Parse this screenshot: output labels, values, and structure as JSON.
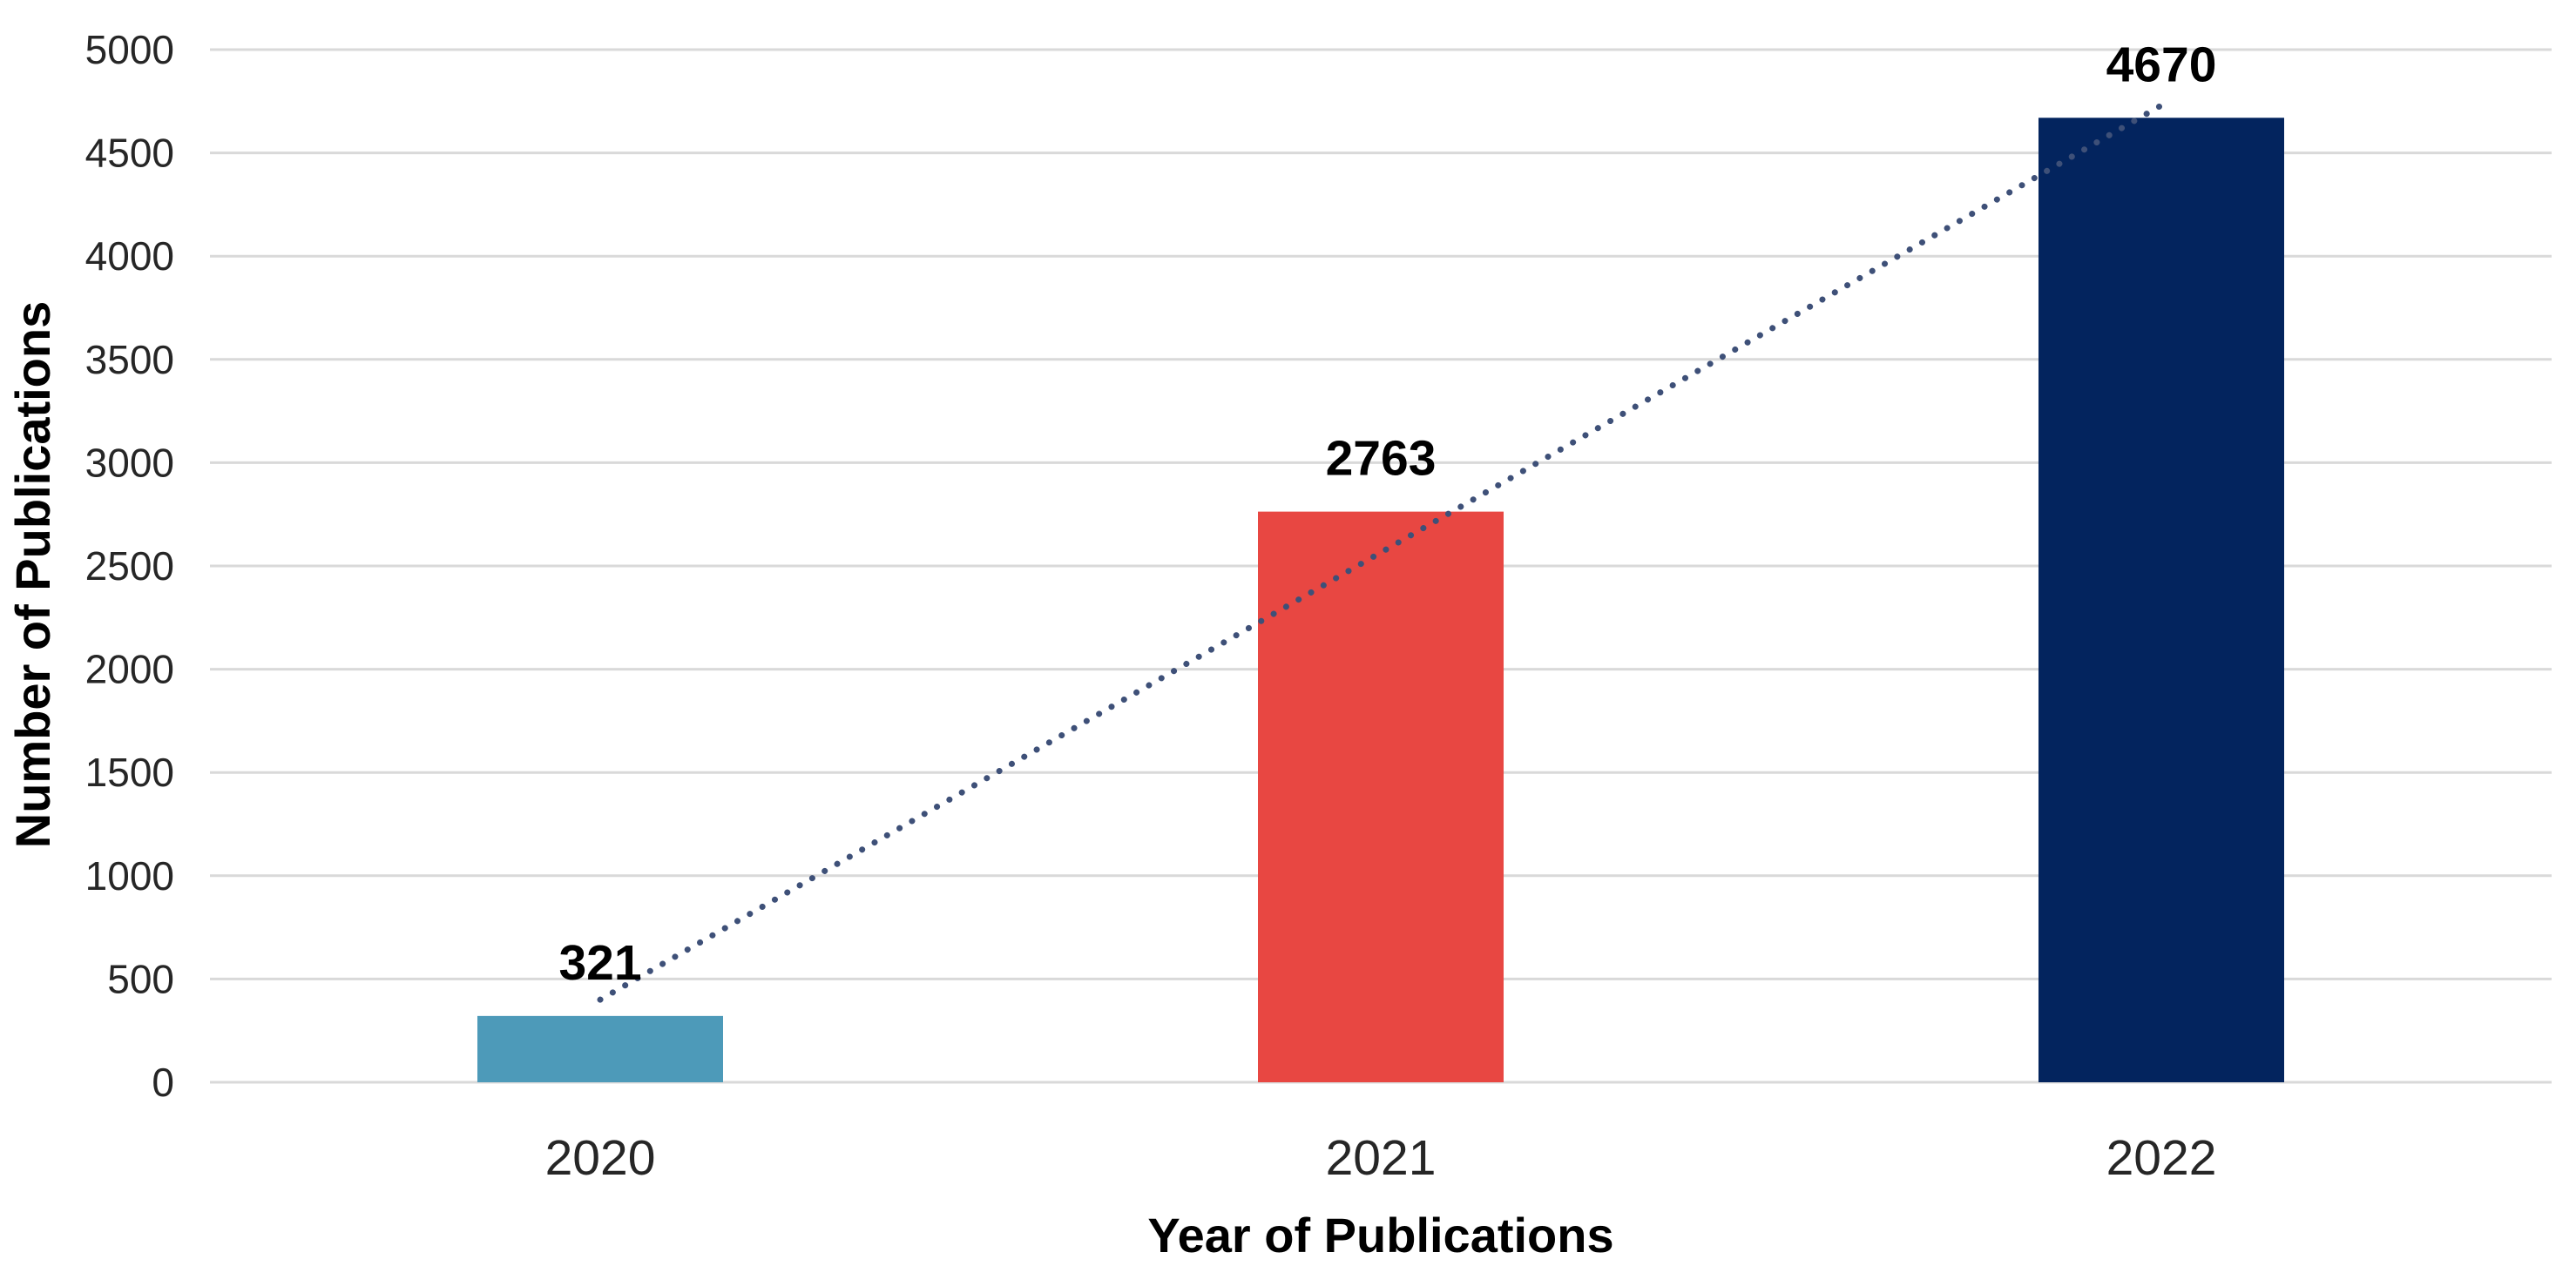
{
  "chart_data": {
    "type": "bar",
    "title": "",
    "categories": [
      "2020",
      "2021",
      "2022"
    ],
    "values": [
      321,
      2763,
      4670
    ],
    "data_labels": [
      "321",
      "2763",
      "4670"
    ],
    "bar_colors": [
      "#4D9AB9",
      "#E84742",
      "#03245E"
    ],
    "xlabel": "Year of Publications",
    "ylabel": "Number of Publications",
    "ylim": [
      0,
      5000
    ],
    "ytick_step": 500,
    "yticks": [
      0,
      500,
      1000,
      1500,
      2000,
      2500,
      3000,
      3500,
      4000,
      4500,
      5000
    ],
    "grid": "horizontal",
    "gridline_color": "#D9D9D9",
    "background_color": "#FFFFFF",
    "label_color": "#000000",
    "tick_color": "#262626",
    "legend": "none",
    "trendline": {
      "style": "dotted",
      "color": "#3E5078",
      "start": {
        "category": "2020",
        "value": 400
      },
      "end": {
        "category": "2022",
        "value": 4730
      }
    }
  }
}
